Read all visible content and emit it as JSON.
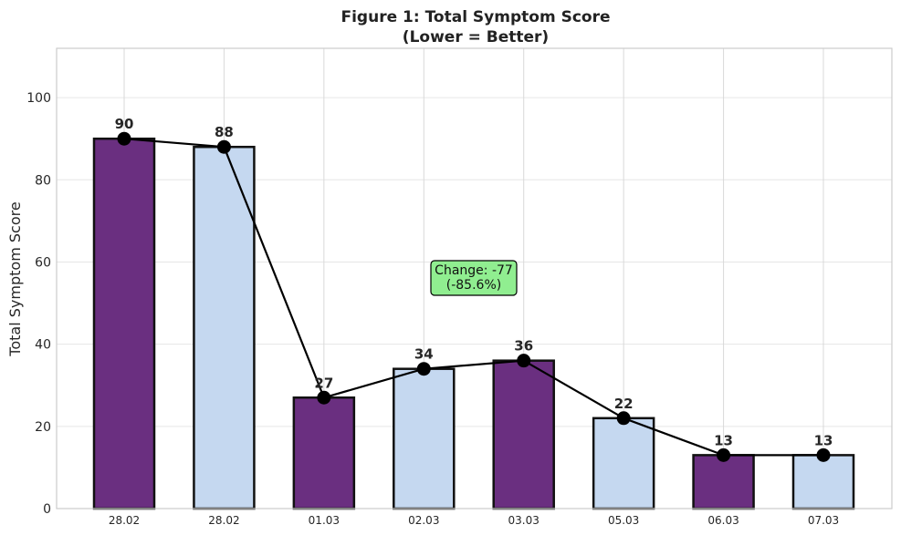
{
  "chart_data": {
    "type": "bar",
    "title_line1": "Figure 1: Total Symptom Score",
    "title_line2": "(Lower = Better)",
    "xlabel": "",
    "ylabel": "Total Symptom Score",
    "categories": [
      "28.02",
      "28.02",
      "01.03",
      "02.03",
      "03.03",
      "05.03",
      "06.03",
      "07.03"
    ],
    "values": [
      90,
      88,
      27,
      34,
      36,
      22,
      13,
      13
    ],
    "bar_colors": [
      "#6a2f80",
      "#c5d8f0",
      "#6a2f80",
      "#c5d8f0",
      "#6a2f80",
      "#c5d8f0",
      "#6a2f80",
      "#c5d8f0"
    ],
    "line_overlay": true,
    "line_color": "#000000",
    "ylim": [
      0,
      112
    ],
    "yticks": [
      0,
      20,
      40,
      60,
      80,
      100
    ],
    "grid": true,
    "annotation": {
      "line1": "Change: -77",
      "line2": "(-85.6%)",
      "background": "#90ee90"
    }
  }
}
